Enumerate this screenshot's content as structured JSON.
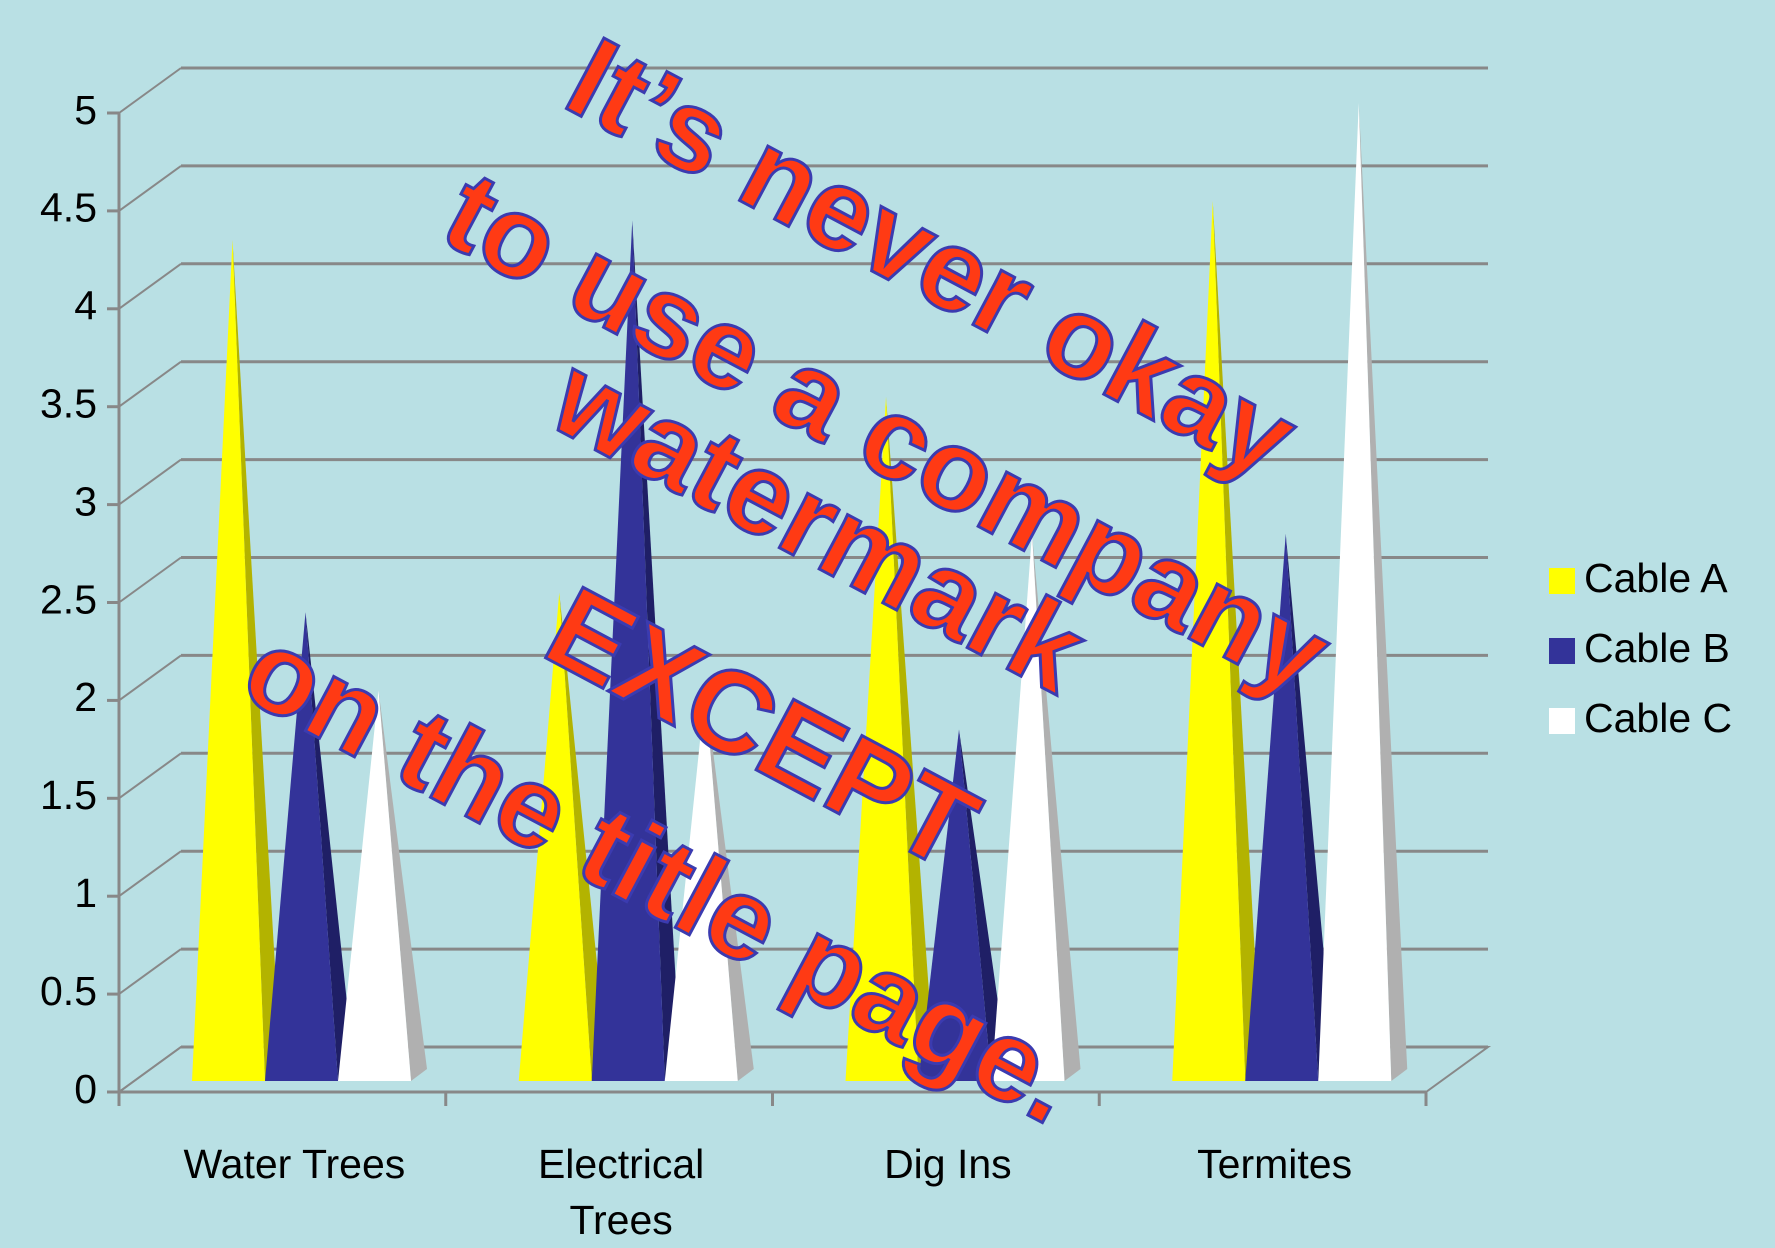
{
  "chart_data": {
    "type": "bar3d",
    "categories": [
      "Water Trees",
      "Electrical Trees",
      "Dig Ins",
      "Termites"
    ],
    "series": [
      {
        "name": "Cable A",
        "color": "#ffff00",
        "values": [
          4.3,
          2.5,
          3.5,
          4.5
        ]
      },
      {
        "name": "Cable B",
        "color": "#333399",
        "values": [
          2.4,
          4.4,
          1.8,
          2.8
        ]
      },
      {
        "name": "Cable C",
        "color": "#ffffff",
        "values": [
          2.0,
          2.0,
          2.8,
          5.0
        ]
      }
    ],
    "ylim": [
      0,
      5
    ],
    "yticks": [
      0,
      0.5,
      1,
      1.5,
      2,
      2.5,
      3,
      3.5,
      4,
      4.5,
      5
    ],
    "grid": true,
    "legend": "right"
  },
  "watermark": {
    "lines": [
      "It’s never okay",
      "to use a company",
      "watermark",
      "EXCEPT",
      "on the title page."
    ]
  }
}
